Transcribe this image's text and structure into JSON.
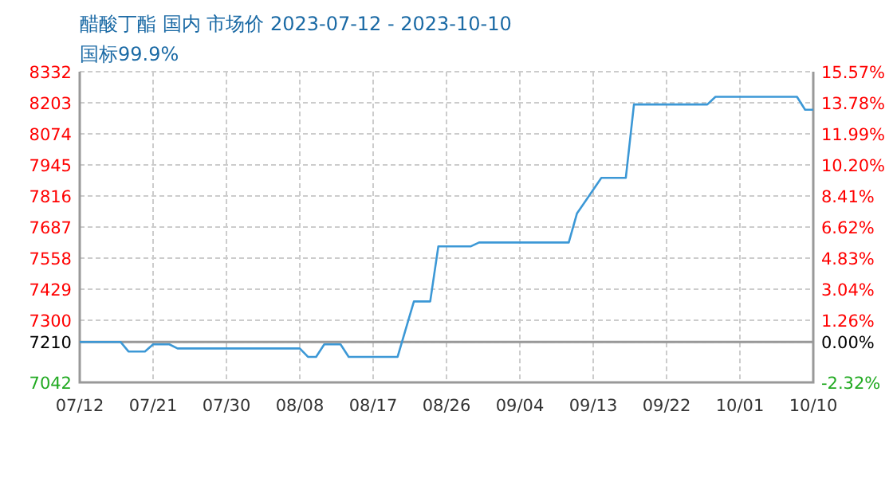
{
  "chart_data": {
    "type": "line",
    "title": "醋酸丁酯 国内 市场价 2023-07-12 - 2023-10-10",
    "subtitle": "国标99.9%",
    "x": [
      "--07-12",
      "--07-17",
      "--07-18",
      "--07-20",
      "--07-21",
      "--07-23",
      "--07-24",
      "--08-08",
      "--08-09",
      "--08-10",
      "--08-11",
      "--08-13",
      "--08-14",
      "--08-20",
      "--08-22",
      "--08-24",
      "--08-25",
      "--08-29",
      "--08-30",
      "--09-10",
      "--09-11",
      "--09-14",
      "--09-17",
      "--09-18",
      "--09-27",
      "--09-28",
      "--10-08",
      "--10-09",
      "--10-10"
    ],
    "series": [
      {
        "color": "#3c98d6",
        "values": [
          7210,
          7210,
          7170,
          7170,
          7200,
          7200,
          7183,
          7183,
          7148,
          7148,
          7200,
          7200,
          7148,
          7148,
          7378,
          7378,
          7607,
          7607,
          7623,
          7623,
          7743,
          7891,
          7891,
          8196,
          8196,
          8228,
          8228,
          8174,
          8174
        ]
      }
    ],
    "xlim": [
      "--07-12",
      "--10-10"
    ],
    "xticks": [
      {
        "value": "--07-12",
        "label": "07/12"
      },
      {
        "value": "--07-21",
        "label": "07/21"
      },
      {
        "value": "--07-30",
        "label": "07/30"
      },
      {
        "value": "--08-08",
        "label": "08/08"
      },
      {
        "value": "--08-17",
        "label": "08/17"
      },
      {
        "value": "--08-26",
        "label": "08/26"
      },
      {
        "value": "--09-04",
        "label": "09/04"
      },
      {
        "value": "--09-13",
        "label": "09/13"
      },
      {
        "value": "--09-22",
        "label": "09/22"
      },
      {
        "value": "--10-01",
        "label": "10/01"
      },
      {
        "value": "--10-10",
        "label": "10/10"
      }
    ],
    "ylim": [
      7042,
      8332
    ],
    "yticks": [
      7042,
      7210,
      7300,
      7429,
      7558,
      7687,
      7816,
      7945,
      8074,
      8203,
      8332
    ],
    "y2lim": [
      -2.32,
      15.57
    ],
    "y2ticks": [
      {
        "value": -2.32,
        "label": "-2.32%"
      },
      {
        "value": 0,
        "label": "0.00%"
      },
      {
        "value": 1.26,
        "label": "1.26%"
      },
      {
        "value": 3.04,
        "label": "3.04%"
      },
      {
        "value": 4.83,
        "label": "4.83%"
      },
      {
        "value": 6.62,
        "label": "6.62%"
      },
      {
        "value": 8.41,
        "label": "8.41%"
      },
      {
        "value": 10.2,
        "label": "10.20%"
      },
      {
        "value": 11.99,
        "label": "11.99%"
      },
      {
        "value": 13.78,
        "label": "13.78%"
      },
      {
        "value": 15.57,
        "label": "15.57%"
      }
    ],
    "ref_lines": [
      {
        "axis": "y",
        "value": 7210,
        "color": "#999999",
        "line_style": "solid"
      }
    ],
    "grid": true,
    "marker": "none",
    "line_style": "solid"
  }
}
